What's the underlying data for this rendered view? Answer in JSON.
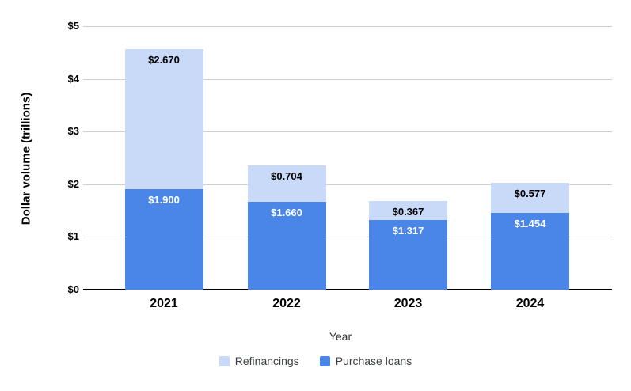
{
  "chart_data": {
    "type": "bar",
    "stacked": true,
    "categories": [
      "2021",
      "2022",
      "2023",
      "2024"
    ],
    "series": [
      {
        "name": "Purchase loans",
        "color": "#4a86e8",
        "label_color": "#ffffff",
        "values": [
          1.9,
          1.66,
          1.317,
          1.454
        ],
        "data_labels": [
          "$1.900",
          "$1.660",
          "$1.317",
          "$1.454"
        ]
      },
      {
        "name": "Refinancings",
        "color": "#c9daf8",
        "label_color": "#000000",
        "values": [
          2.67,
          0.704,
          0.367,
          0.577
        ],
        "data_labels": [
          "$2.670",
          "$0.704",
          "$0.367",
          "$0.577"
        ]
      }
    ],
    "xlabel": "Year",
    "ylabel": "Dollar volume (trillions)",
    "ylim": [
      0,
      5
    ],
    "yticks": [
      {
        "value": 0,
        "label": "$0"
      },
      {
        "value": 1,
        "label": "$1"
      },
      {
        "value": 2,
        "label": "$2"
      },
      {
        "value": 3,
        "label": "$3"
      },
      {
        "value": 4,
        "label": "$4"
      },
      {
        "value": 5,
        "label": "$5"
      }
    ],
    "grid": true,
    "legend_position": "bottom",
    "legend": [
      {
        "label": "Refinancings",
        "color": "#c9daf8"
      },
      {
        "label": "Purchase loans",
        "color": "#4a86e8"
      }
    ]
  },
  "colors": {
    "background": "#ffffff",
    "gridline": "#cfcfcf",
    "axis_line": "#000000",
    "purchase_loans": "#4a86e8",
    "refinancings": "#c9daf8"
  }
}
